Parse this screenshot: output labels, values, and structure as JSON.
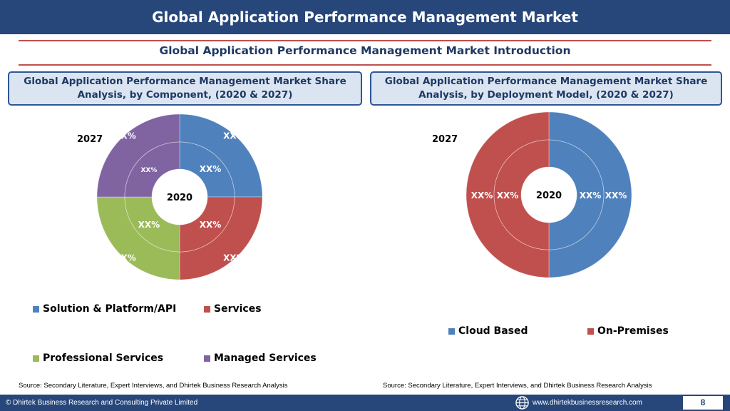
{
  "header": {
    "title": "Global Application Performance Management Market",
    "subtitle": "Global Application Performance Management Market  Introduction"
  },
  "colors": {
    "blue": "#4f81bd",
    "red": "#c0504d",
    "green": "#9bbb59",
    "purple": "#8064a2",
    "title_bar": "#27477a"
  },
  "chart_data": [
    {
      "type": "pie",
      "variant": "doughnut",
      "header_line1": "Global Application Performance Management Market  Share",
      "header_line2": "Analysis, by Component, (2020 & 2027)",
      "outer_ring_label": "2027",
      "inner_ring_label": "2020",
      "categories": [
        "Solution & Platform/API",
        "Services",
        "Professional Services",
        "Managed Services"
      ],
      "series": [
        {
          "name": "2027",
          "values": [
            25,
            25,
            25,
            25
          ],
          "labels": [
            "XX%",
            "XX%",
            "XX%",
            "XX%"
          ]
        },
        {
          "name": "2020",
          "values": [
            25,
            25,
            25,
            25
          ],
          "labels": [
            "XX%",
            "XX%",
            "XX%",
            "XX%"
          ]
        }
      ],
      "legend_position": "bottom",
      "source": "Source: Secondary Literature, Expert Interviews, and Dhirtek Business Research Analysis"
    },
    {
      "type": "pie",
      "variant": "doughnut",
      "header_line1": "Global Application Performance Management Market  Share",
      "header_line2": "Analysis, by Deployment Model, (2020 & 2027)",
      "outer_ring_label": "2027",
      "inner_ring_label": "2020",
      "categories": [
        "Cloud Based",
        "On-Premises"
      ],
      "series": [
        {
          "name": "2027",
          "values": [
            50,
            50
          ],
          "labels": [
            "XX%",
            "XX%"
          ]
        },
        {
          "name": "2020",
          "values": [
            50,
            50
          ],
          "labels": [
            "XX%",
            "XX%"
          ]
        }
      ],
      "legend_position": "bottom",
      "source": "Source: Secondary Literature, Expert Interviews, and Dhirtek Business Research Analysis"
    }
  ],
  "footer": {
    "copyright": "© Dhirtek Business Research and Consulting Private Limited",
    "website": "www.dhirtekbusinessresearch.com",
    "globe_icon": "globe-icon",
    "page_number": "8"
  }
}
